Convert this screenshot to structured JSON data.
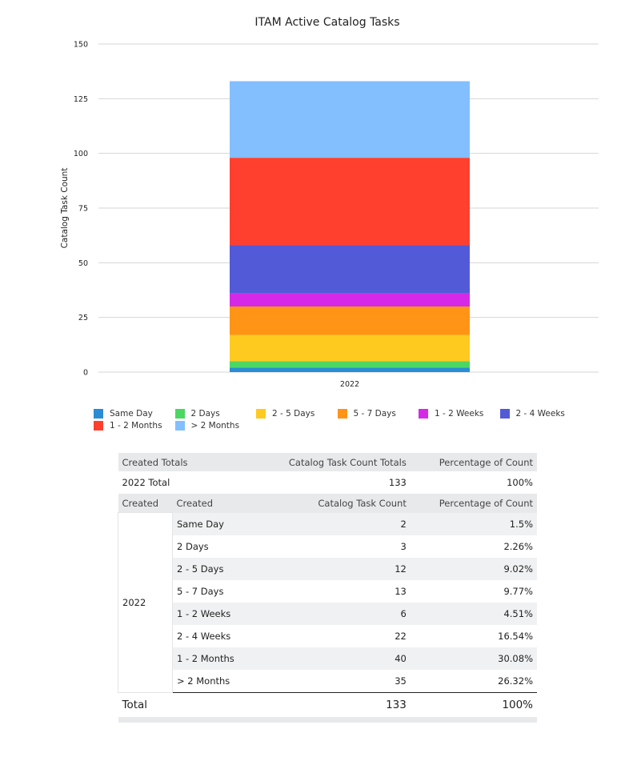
{
  "chart_data": {
    "type": "bar",
    "stacked": true,
    "title": "ITAM Active Catalog Tasks",
    "xlabel": "",
    "ylabel": "Catalog Task Count",
    "ylim": [
      0,
      150
    ],
    "yticks": [
      0,
      25,
      50,
      75,
      100,
      125,
      150
    ],
    "categories": [
      "2022"
    ],
    "series": [
      {
        "name": "Same Day",
        "values": [
          2
        ],
        "color": "#2a8dd4"
      },
      {
        "name": "2 Days",
        "values": [
          3
        ],
        "color": "#4bd762"
      },
      {
        "name": "2 - 5 Days",
        "values": [
          12
        ],
        "color": "#ffca1f"
      },
      {
        "name": "5 - 7 Days",
        "values": [
          13
        ],
        "color": "#ff9416"
      },
      {
        "name": "1 - 2 Weeks",
        "values": [
          6
        ],
        "color": "#d42ae8"
      },
      {
        "name": "2 - 4 Weeks",
        "values": [
          22
        ],
        "color": "#535ad7"
      },
      {
        "name": "1 - 2 Months",
        "values": [
          40
        ],
        "color": "#ff402f"
      },
      {
        "name": "> 2 Months",
        "values": [
          35
        ],
        "color": "#83bfff"
      }
    ],
    "grid": true,
    "legend": "bottom"
  },
  "table": {
    "totals_header": [
      "Created Totals",
      "Catalog Task Count Totals",
      "Percentage of Count"
    ],
    "totals_row": [
      "2022 Total",
      "133",
      "100%"
    ],
    "header": [
      "Created",
      "Created",
      "Catalog Task Count",
      "Percentage of Count"
    ],
    "group": "2022",
    "rows": [
      [
        "Same Day",
        "2",
        "1.5%"
      ],
      [
        "2 Days",
        "3",
        "2.26%"
      ],
      [
        "2 - 5 Days",
        "12",
        "9.02%"
      ],
      [
        "5 - 7 Days",
        "13",
        "9.77%"
      ],
      [
        "1 - 2 Weeks",
        "6",
        "4.51%"
      ],
      [
        "2 - 4 Weeks",
        "22",
        "16.54%"
      ],
      [
        "1 - 2 Months",
        "40",
        "30.08%"
      ],
      [
        "> 2 Months",
        "35",
        "26.32%"
      ]
    ],
    "total": [
      "Total",
      "133",
      "100%"
    ]
  }
}
